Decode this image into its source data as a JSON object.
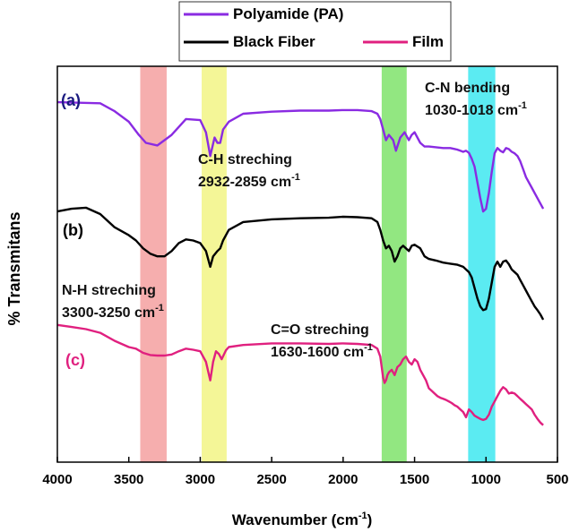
{
  "chart_data": {
    "type": "line",
    "xlabel": "Wavenumber (cm",
    "xlabel_sup": "-1",
    "xlabel_tail": ")",
    "ylabel": "% Transmitans",
    "xlim": [
      4000,
      500
    ],
    "x_reversed": true,
    "xticks": [
      "4000",
      "3500",
      "3000",
      "2500",
      "2000",
      "1500",
      "1000",
      "500"
    ],
    "xtick_values": [
      4000,
      3500,
      3000,
      2500,
      2000,
      1500,
      1000,
      500
    ],
    "y_ticks_shown": false,
    "legend": {
      "placement": "top-center",
      "entries": [
        {
          "name": "Polyamide (PA)",
          "color": "#8a2be2"
        },
        {
          "name": "Black Fiber",
          "color": "#000000"
        },
        {
          "name": "Film",
          "color": "#e0207f"
        }
      ]
    },
    "curve_labels": [
      {
        "text": "(a)",
        "color": "#1a1a80",
        "series": "Polyamide (PA)"
      },
      {
        "text": "(b)",
        "color": "#000000",
        "series": "Black Fiber"
      },
      {
        "text": "(c)",
        "color": "#e0207f",
        "series": "Film"
      }
    ],
    "bands": [
      {
        "from": 3420,
        "to": 3235,
        "color": "#f4a0a0",
        "label_main": "N-H streching",
        "label_range": "3300-3250 cm",
        "label_sup": "-1"
      },
      {
        "from": 2990,
        "to": 2815,
        "color": "#f2f585",
        "label_main": "C-H streching",
        "label_range": "2932-2859 cm",
        "label_sup": "-1"
      },
      {
        "from": 1730,
        "to": 1555,
        "color": "#7fe36b",
        "label_main": "C=O streching",
        "label_range": "1630-1600 cm",
        "label_sup": "-1"
      },
      {
        "from": 1125,
        "to": 935,
        "color": "#3ee8f0",
        "label_main": "C-N bending",
        "label_range": "1030-1018 cm",
        "label_sup": "-1"
      }
    ],
    "series": [
      {
        "name": "Polyamide (PA)",
        "color": "#8a2be2",
        "x": [
          4000,
          3700,
          3600,
          3500,
          3430,
          3380,
          3300,
          3200,
          3100,
          3000,
          2960,
          2930,
          2900,
          2880,
          2860,
          2840,
          2800,
          2700,
          2500,
          2300,
          2100,
          2000,
          1900,
          1800,
          1760,
          1740,
          1720,
          1700,
          1680,
          1650,
          1630,
          1600,
          1570,
          1540,
          1520,
          1500,
          1460,
          1430,
          1400,
          1300,
          1250,
          1200,
          1180,
          1160,
          1140,
          1120,
          1100,
          1080,
          1060,
          1040,
          1020,
          1000,
          980,
          960,
          940,
          920,
          900,
          880,
          860,
          840,
          820,
          800,
          780,
          760,
          740,
          720,
          700,
          680,
          660,
          640,
          620,
          600
        ],
        "y": [
          7.22,
          7.2,
          7.05,
          6.85,
          6.6,
          6.45,
          6.4,
          6.6,
          6.9,
          6.88,
          6.65,
          6.2,
          6.55,
          6.45,
          6.45,
          6.7,
          6.85,
          7.0,
          7.04,
          7.06,
          7.06,
          7.07,
          7.07,
          7.05,
          7.0,
          6.9,
          6.7,
          6.5,
          6.6,
          6.5,
          6.3,
          6.55,
          6.65,
          6.5,
          6.6,
          6.65,
          6.45,
          6.38,
          6.38,
          6.35,
          6.35,
          6.32,
          6.3,
          6.28,
          6.3,
          6.26,
          6.15,
          6.0,
          5.7,
          5.4,
          5.15,
          5.2,
          5.5,
          5.9,
          6.25,
          6.35,
          6.3,
          6.27,
          6.35,
          6.33,
          6.28,
          6.25,
          6.2,
          6.1,
          5.95,
          5.8,
          5.7,
          5.6,
          5.5,
          5.4,
          5.3,
          5.2
        ]
      },
      {
        "name": "Black Fiber",
        "color": "#000000",
        "x": [
          4000,
          3900,
          3800,
          3700,
          3600,
          3500,
          3450,
          3400,
          3350,
          3300,
          3250,
          3200,
          3150,
          3100,
          3050,
          3000,
          2960,
          2930,
          2910,
          2880,
          2860,
          2840,
          2800,
          2700,
          2500,
          2300,
          2100,
          2000,
          1900,
          1800,
          1760,
          1740,
          1720,
          1700,
          1680,
          1660,
          1640,
          1620,
          1600,
          1580,
          1560,
          1540,
          1520,
          1500,
          1460,
          1430,
          1400,
          1350,
          1300,
          1250,
          1200,
          1180,
          1160,
          1140,
          1120,
          1100,
          1080,
          1060,
          1040,
          1020,
          1000,
          980,
          960,
          940,
          920,
          900,
          880,
          860,
          840,
          820,
          800,
          780,
          760,
          740,
          720,
          700,
          680,
          660,
          640,
          620,
          600
        ],
        "y": [
          5.15,
          5.2,
          5.22,
          5.1,
          4.85,
          4.7,
          4.6,
          4.45,
          4.35,
          4.3,
          4.3,
          4.4,
          4.55,
          4.62,
          4.6,
          4.55,
          4.4,
          4.1,
          4.3,
          4.4,
          4.45,
          4.6,
          4.8,
          4.95,
          5.0,
          5.02,
          5.03,
          5.05,
          5.04,
          5.02,
          4.95,
          4.8,
          4.6,
          4.45,
          4.5,
          4.4,
          4.2,
          4.3,
          4.45,
          4.5,
          4.45,
          4.4,
          4.5,
          4.52,
          4.45,
          4.3,
          4.25,
          4.22,
          4.18,
          4.16,
          4.14,
          4.12,
          4.1,
          4.05,
          4.0,
          3.9,
          3.7,
          3.5,
          3.35,
          3.28,
          3.3,
          3.5,
          3.8,
          4.1,
          4.2,
          4.1,
          4.2,
          4.22,
          4.15,
          4.05,
          4.0,
          3.95,
          3.85,
          3.75,
          3.65,
          3.55,
          3.45,
          3.35,
          3.28,
          3.2,
          3.1
        ]
      },
      {
        "name": "Film",
        "color": "#e0207f",
        "x": [
          4000,
          3900,
          3800,
          3700,
          3600,
          3500,
          3450,
          3400,
          3350,
          3300,
          3250,
          3200,
          3150,
          3100,
          3050,
          3000,
          2960,
          2930,
          2910,
          2890,
          2870,
          2850,
          2820,
          2800,
          2700,
          2500,
          2300,
          2100,
          2000,
          1900,
          1800,
          1760,
          1740,
          1730,
          1720,
          1710,
          1700,
          1690,
          1680,
          1660,
          1640,
          1620,
          1600,
          1580,
          1560,
          1540,
          1520,
          1500,
          1480,
          1460,
          1440,
          1420,
          1400,
          1380,
          1360,
          1340,
          1320,
          1300,
          1280,
          1260,
          1240,
          1220,
          1200,
          1180,
          1160,
          1140,
          1120,
          1100,
          1080,
          1060,
          1040,
          1020,
          1000,
          980,
          960,
          940,
          920,
          900,
          880,
          860,
          840,
          820,
          800,
          780,
          760,
          740,
          720,
          700,
          680,
          660,
          640,
          620,
          600
        ],
        "y": [
          3.0,
          2.96,
          2.92,
          2.85,
          2.7,
          2.58,
          2.55,
          2.47,
          2.43,
          2.42,
          2.42,
          2.44,
          2.5,
          2.55,
          2.53,
          2.5,
          2.3,
          1.95,
          2.3,
          2.5,
          2.45,
          2.35,
          2.52,
          2.58,
          2.62,
          2.65,
          2.65,
          2.64,
          2.65,
          2.64,
          2.62,
          2.55,
          2.4,
          2.2,
          2.0,
          1.9,
          1.95,
          2.05,
          2.1,
          2.15,
          2.05,
          2.2,
          2.25,
          2.35,
          2.4,
          2.3,
          2.25,
          2.35,
          2.3,
          2.15,
          2.05,
          1.95,
          1.8,
          1.75,
          1.7,
          1.65,
          1.62,
          1.6,
          1.58,
          1.55,
          1.52,
          1.48,
          1.45,
          1.4,
          1.35,
          1.25,
          1.4,
          1.35,
          1.28,
          1.25,
          1.22,
          1.2,
          1.22,
          1.3,
          1.45,
          1.55,
          1.65,
          1.75,
          1.82,
          1.78,
          1.7,
          1.72,
          1.7,
          1.65,
          1.6,
          1.55,
          1.5,
          1.45,
          1.4,
          1.3,
          1.22,
          1.15,
          1.1
        ]
      }
    ]
  }
}
